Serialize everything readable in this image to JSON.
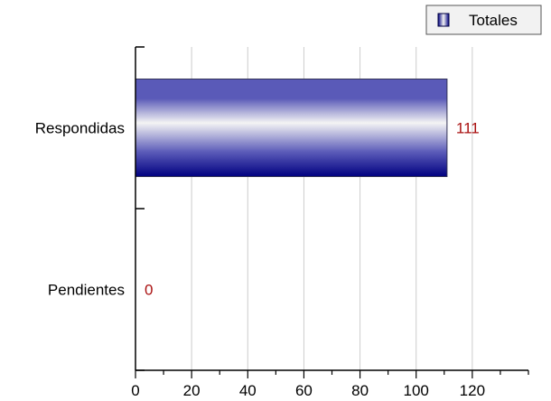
{
  "chart_data": {
    "type": "bar",
    "orientation": "horizontal",
    "categories": [
      "Respondidas",
      "Pendientes"
    ],
    "series": [
      {
        "name": "Totales",
        "values": [
          111,
          0
        ]
      }
    ],
    "data_labels": [
      "111",
      "0"
    ],
    "xticks": [
      0,
      20,
      40,
      60,
      80,
      100,
      120
    ],
    "xlim": [
      0,
      140
    ],
    "grid": "vertical",
    "legend": {
      "label": "Totales",
      "position": "top-right"
    },
    "colors": {
      "bar_dark": "#000080",
      "bar_mid": "#5a5ab8",
      "bar_light": "#f4f4f4",
      "data_label": "#aa1111",
      "gridline": "#cccccc",
      "axis": "#000000"
    }
  }
}
